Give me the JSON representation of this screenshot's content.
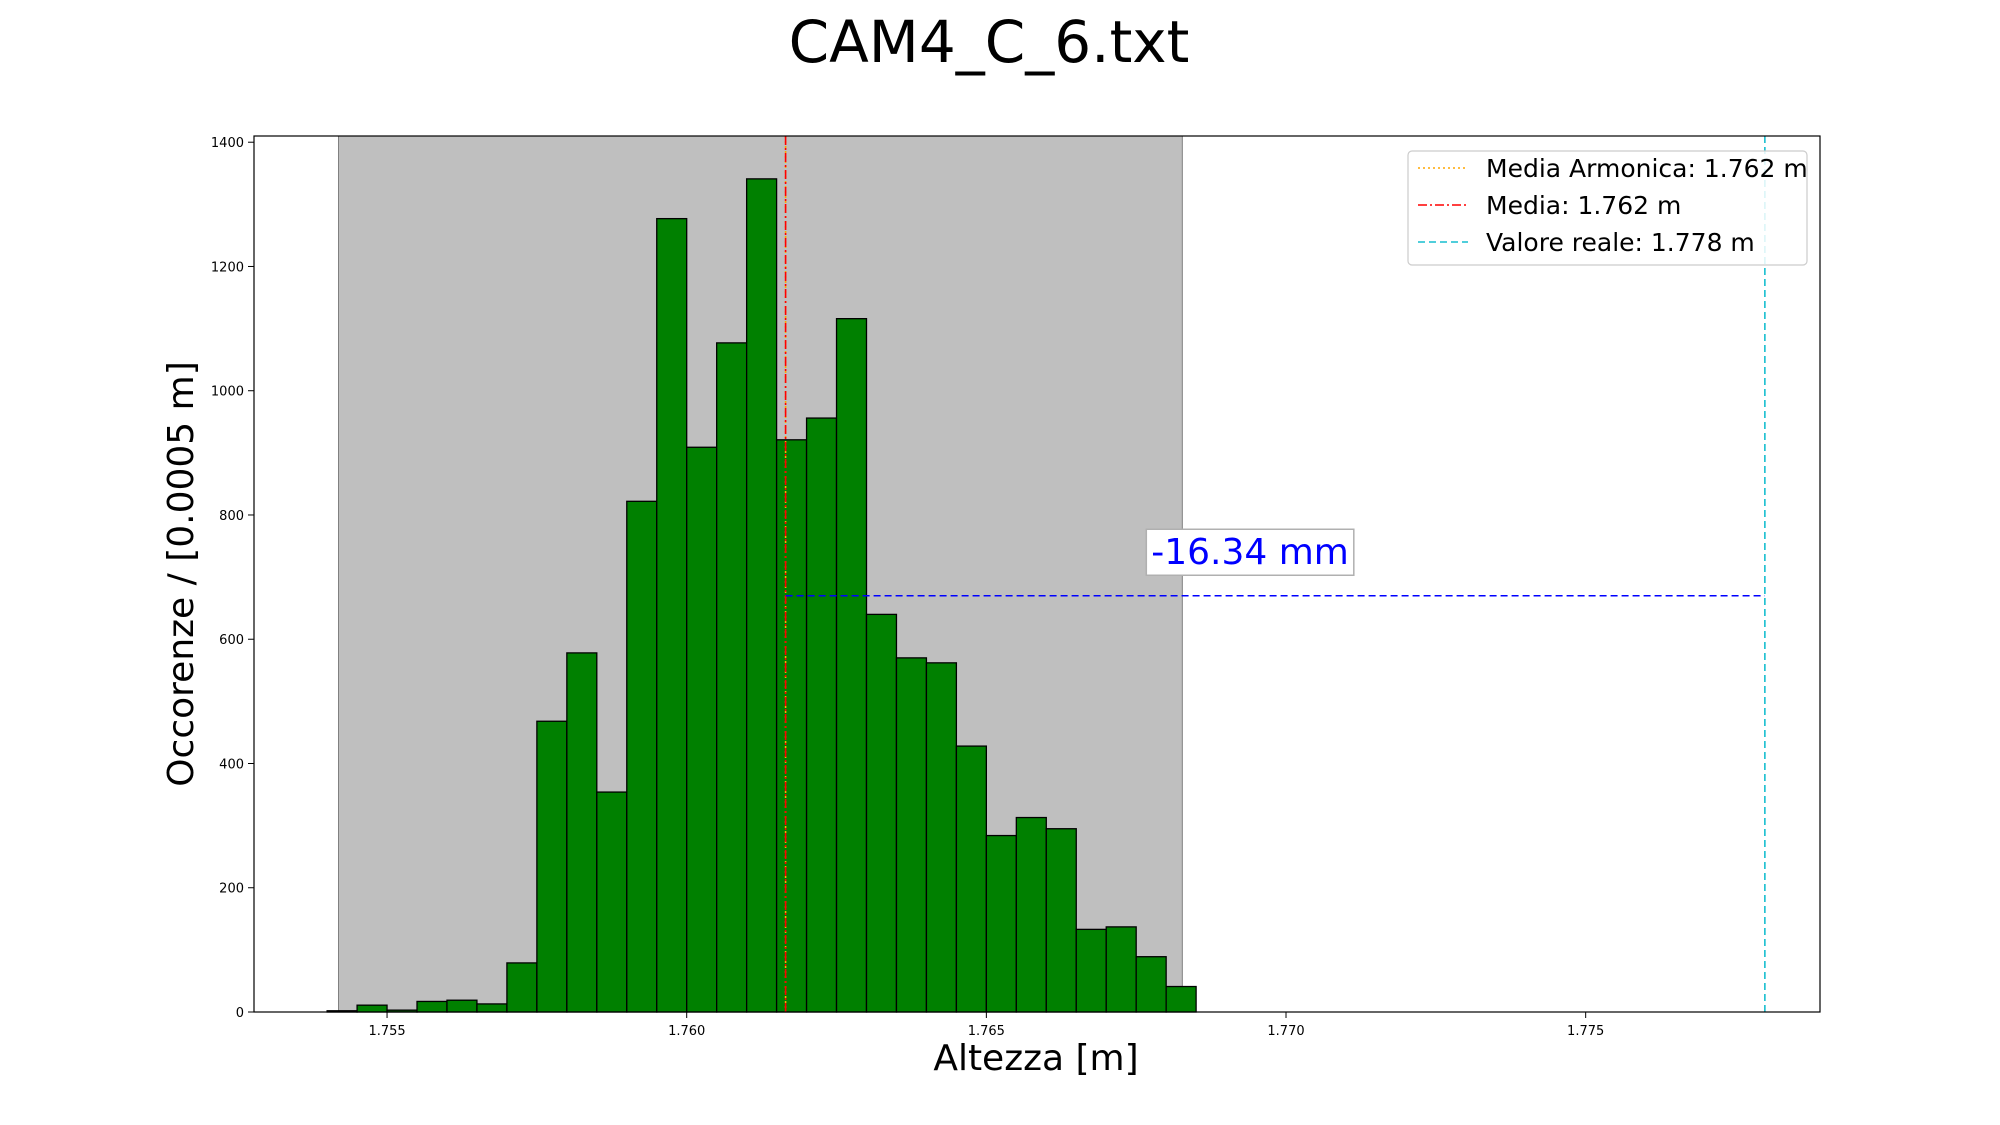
{
  "chart_data": {
    "type": "bar",
    "title": "CAM4_C_6.txt",
    "xlabel": "Altezza [m]",
    "ylabel": "Occorenze / [0.0005 m]",
    "xlim": [
      1.75278,
      1.77891
    ],
    "ylim": [
      0,
      1410
    ],
    "x_ticks": [
      {
        "value": 1.755,
        "label": "1.755"
      },
      {
        "value": 1.76,
        "label": "1.760"
      },
      {
        "value": 1.765,
        "label": "1.765"
      },
      {
        "value": 1.77,
        "label": "1.770"
      },
      {
        "value": 1.775,
        "label": "1.775"
      }
    ],
    "y_ticks": [
      {
        "value": 0,
        "label": "0"
      },
      {
        "value": 200,
        "label": "200"
      },
      {
        "value": 400,
        "label": "400"
      },
      {
        "value": 600,
        "label": "600"
      },
      {
        "value": 800,
        "label": "800"
      },
      {
        "value": 1000,
        "label": "1000"
      },
      {
        "value": 1200,
        "label": "1200"
      },
      {
        "value": 1400,
        "label": "1400"
      }
    ],
    "bins": {
      "start": 1.754,
      "width": 0.0005,
      "counts": [
        2,
        11,
        3,
        17,
        19,
        13,
        79,
        468,
        578,
        354,
        822,
        1277,
        909,
        1077,
        1341,
        921,
        956,
        1116,
        640,
        570,
        562,
        428,
        284,
        313,
        295,
        133,
        137,
        89,
        41
      ],
      "color": "#008000",
      "edge_color": "#000000"
    },
    "shaded_range": {
      "x_start": 1.75419,
      "x_end": 1.76827,
      "color": "#bfbfbf"
    },
    "vlines": [
      {
        "name": "Media Armonica: 1.762 m",
        "x": 1.76165,
        "color": "#ffa500",
        "style": "dotted"
      },
      {
        "name": "Media: 1.762 m",
        "x": 1.76165,
        "color": "#ff0000",
        "style": "dashdot"
      },
      {
        "name": "Valore reale: 1.778 m",
        "x": 1.77799,
        "color": "#17becf",
        "style": "dashed"
      }
    ],
    "difference_line": {
      "x_start": 1.76165,
      "x_end": 1.77799,
      "y": 670,
      "color": "#0000ff"
    },
    "annotation": {
      "text": "-16.34 mm",
      "x": 1.7694,
      "y": 740,
      "color": "#0000ff"
    },
    "legend": {
      "position": "top-right",
      "entries": [
        "Media Armonica: 1.762 m",
        "Media: 1.762 m",
        "Valore reale: 1.778 m"
      ]
    },
    "grid": false
  }
}
